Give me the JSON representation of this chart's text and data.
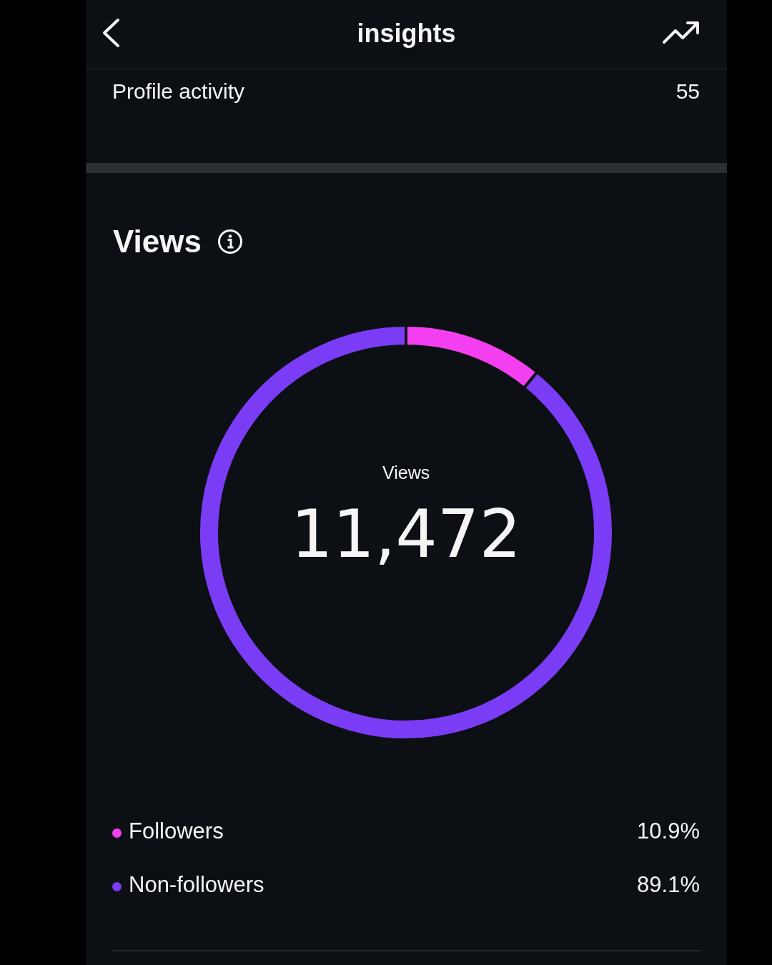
{
  "chart_data": {
    "type": "donut",
    "title": "insights",
    "subtitle": "Views",
    "categories": [
      "Followers",
      "Non-followers"
    ],
    "values": [
      10.9,
      89.1
    ],
    "colors": [
      "#f43ff0",
      "#7b3cf5"
    ],
    "value_labels": [
      "10.9%",
      "89.1%"
    ],
    "legend": "bottom",
    "annotations": [
      "Profile activity",
      "55",
      "Views",
      "11,472"
    ]
  }
}
